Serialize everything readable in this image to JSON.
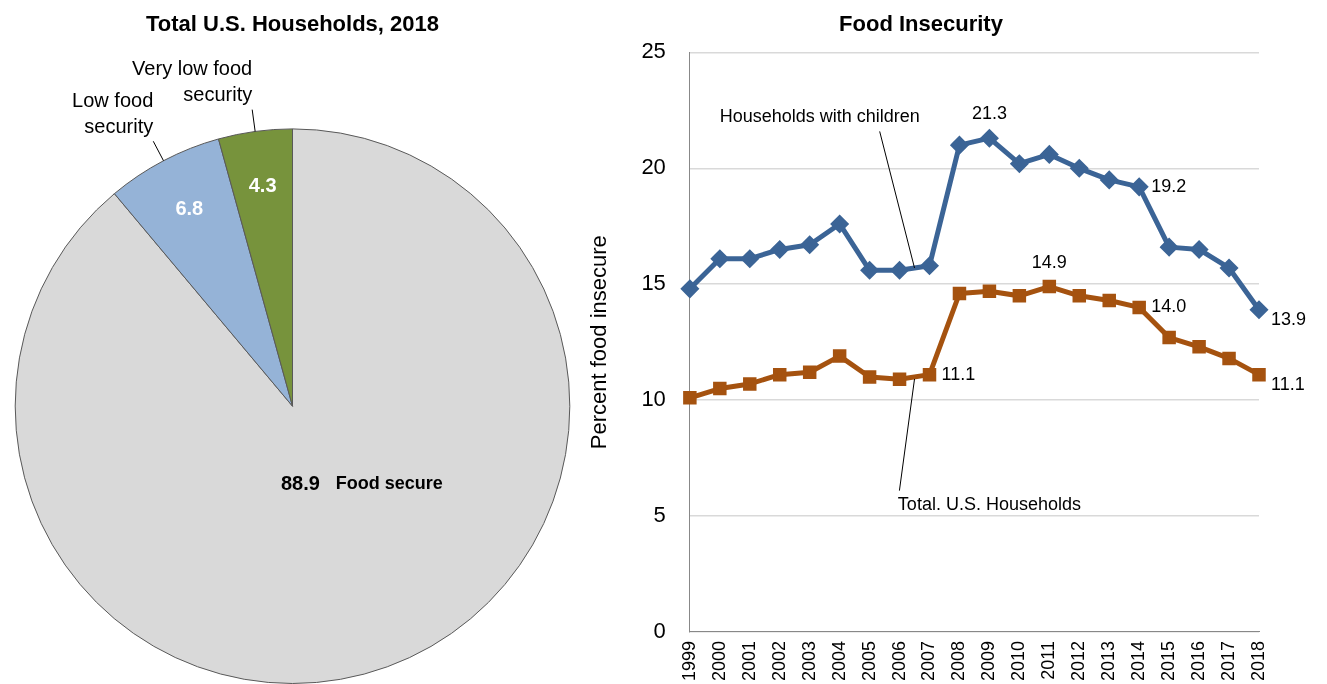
{
  "chart_data": [
    {
      "type": "pie",
      "title": "Total U.S. Households, 2018",
      "categories": [
        "Food secure",
        "Low food security",
        "Very low food security"
      ],
      "values": [
        88.9,
        6.8,
        4.3
      ],
      "colors": [
        "#d9d9d9",
        "#95b3d7",
        "#77933c"
      ],
      "data_labels": true,
      "legend": false
    },
    {
      "type": "line",
      "title": "Food Insecurity",
      "ylabel": "Percent food insecure",
      "categories": [
        "1999",
        "2000",
        "2001",
        "2002",
        "2003",
        "2004",
        "2005",
        "2006",
        "2007",
        "2008",
        "2009",
        "2010",
        "2011",
        "2012",
        "2013",
        "2014",
        "2015",
        "2016",
        "2017",
        "2018"
      ],
      "series": [
        {
          "name": "Households with children",
          "color": "#3b6496",
          "marker": "diamond",
          "values": [
            14.8,
            16.1,
            16.1,
            16.5,
            16.7,
            17.6,
            15.6,
            15.6,
            15.8,
            21.0,
            21.3,
            20.2,
            20.6,
            20.0,
            19.5,
            19.2,
            16.6,
            16.5,
            15.7,
            13.9
          ],
          "value_labels": [
            null,
            null,
            null,
            null,
            null,
            null,
            null,
            null,
            null,
            null,
            "21.3",
            null,
            null,
            null,
            null,
            "19.2",
            null,
            null,
            null,
            "13.9"
          ]
        },
        {
          "name": "Total. U.S. Households",
          "color": "#a5520f",
          "marker": "square",
          "values": [
            10.1,
            10.5,
            10.7,
            11.1,
            11.2,
            11.9,
            11.0,
            10.9,
            11.1,
            14.6,
            14.7,
            14.5,
            14.9,
            14.5,
            14.3,
            14.0,
            12.7,
            12.3,
            11.8,
            11.1
          ],
          "value_labels": [
            null,
            null,
            null,
            null,
            null,
            null,
            null,
            null,
            "11.1",
            null,
            null,
            null,
            "14.9",
            null,
            null,
            "14.0",
            null,
            null,
            null,
            "11.1"
          ]
        }
      ],
      "ylim": [
        0,
        25
      ],
      "yticks": [
        0,
        5,
        10,
        15,
        20,
        25
      ],
      "grid": "y",
      "legend": false,
      "line_style": "solid"
    }
  ]
}
